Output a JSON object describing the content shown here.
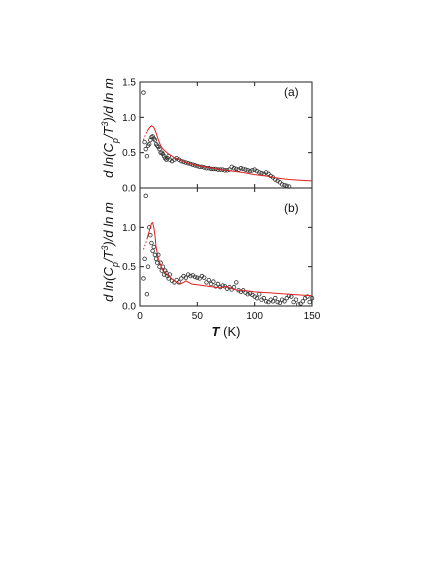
{
  "chart_data": [
    {
      "type": "scatter",
      "panel_label": "(a)",
      "ylabel": "d ln(C_p/T^3)/d ln m",
      "xlabel": "T (K)",
      "xlim": [
        0,
        150
      ],
      "ylim": [
        0,
        1.5
      ],
      "xticks": [
        0,
        50,
        100,
        150
      ],
      "yticks": [
        0.0,
        0.5,
        1.0,
        1.5
      ],
      "series": [
        {
          "style": "scatter",
          "color": "#333333",
          "x": [
            3,
            4,
            5,
            6,
            7,
            8,
            9,
            10,
            11,
            12,
            13,
            14,
            15,
            16,
            17,
            18,
            19,
            20,
            21,
            22,
            23,
            24,
            25,
            26,
            28,
            30,
            32,
            34,
            36,
            38,
            40,
            42,
            44,
            46,
            48,
            50,
            52,
            54,
            56,
            58,
            60,
            62,
            64,
            66,
            68,
            70,
            72,
            74,
            76,
            78,
            80,
            82,
            84,
            86,
            88,
            90,
            92,
            94,
            96,
            98,
            100,
            102,
            104,
            106,
            108,
            110,
            112,
            114,
            116,
            118,
            120,
            122,
            124,
            126,
            128,
            130
          ],
          "y": [
            1.35,
            0.65,
            0.55,
            0.45,
            0.6,
            0.62,
            0.68,
            0.72,
            0.73,
            0.7,
            0.68,
            0.62,
            0.6,
            0.58,
            0.55,
            0.5,
            0.5,
            0.48,
            0.45,
            0.42,
            0.4,
            0.42,
            0.45,
            0.4,
            0.38,
            0.4,
            0.42,
            0.4,
            0.38,
            0.37,
            0.36,
            0.35,
            0.34,
            0.33,
            0.32,
            0.31,
            0.3,
            0.3,
            0.29,
            0.28,
            0.28,
            0.27,
            0.27,
            0.27,
            0.26,
            0.26,
            0.26,
            0.25,
            0.25,
            0.26,
            0.3,
            0.28,
            0.27,
            0.26,
            0.28,
            0.27,
            0.26,
            0.25,
            0.24,
            0.25,
            0.26,
            0.24,
            0.22,
            0.21,
            0.2,
            0.22,
            0.2,
            0.17,
            0.15,
            0.12,
            0.1,
            0.08,
            0.05,
            0.04,
            0.03,
            0.02
          ]
        },
        {
          "style": "line",
          "color": "#e02020",
          "x": [
            6,
            8,
            10,
            12,
            14,
            16,
            18,
            20,
            25,
            30,
            40,
            50,
            60,
            70,
            80,
            90,
            100,
            110,
            120,
            130,
            140,
            150
          ],
          "y": [
            0.8,
            0.85,
            0.88,
            0.86,
            0.78,
            0.68,
            0.6,
            0.55,
            0.48,
            0.43,
            0.36,
            0.32,
            0.29,
            0.26,
            0.24,
            0.22,
            0.19,
            0.17,
            0.14,
            0.12,
            0.11,
            0.1
          ]
        },
        {
          "style": "dotted",
          "color": "#e02020",
          "x": [
            3,
            4,
            5,
            6
          ],
          "y": [
            0.68,
            0.72,
            0.76,
            0.8
          ]
        }
      ]
    },
    {
      "type": "scatter",
      "panel_label": "(b)",
      "ylabel": "d ln(C_p/T^3)/d ln m",
      "xlabel": "T (K)",
      "xlim": [
        0,
        150
      ],
      "ylim": [
        0,
        1.5
      ],
      "xticks": [
        0,
        50,
        100,
        150
      ],
      "yticks": [
        0.0,
        0.5,
        1.0
      ],
      "series": [
        {
          "style": "scatter",
          "color": "#333333",
          "x": [
            3,
            4,
            5,
            6,
            7,
            8,
            9,
            10,
            11,
            12,
            13,
            14,
            15,
            16,
            17,
            18,
            19,
            20,
            21,
            22,
            23,
            24,
            25,
            26,
            28,
            30,
            32,
            34,
            36,
            38,
            40,
            42,
            44,
            46,
            48,
            50,
            52,
            54,
            56,
            58,
            60,
            62,
            64,
            66,
            68,
            70,
            72,
            74,
            76,
            78,
            80,
            82,
            84,
            86,
            88,
            90,
            92,
            94,
            96,
            98,
            100,
            102,
            104,
            106,
            108,
            110,
            112,
            114,
            116,
            118,
            120,
            122,
            124,
            126,
            128,
            130,
            132,
            134,
            136,
            138,
            140,
            142,
            144,
            146,
            148,
            150
          ],
          "y": [
            0.35,
            0.6,
            1.4,
            0.15,
            0.5,
            1.0,
            0.9,
            0.8,
            0.7,
            0.75,
            0.65,
            0.6,
            0.55,
            0.65,
            0.5,
            0.55,
            0.45,
            0.5,
            0.4,
            0.45,
            0.42,
            0.38,
            0.35,
            0.4,
            0.32,
            0.3,
            0.33,
            0.3,
            0.35,
            0.38,
            0.36,
            0.4,
            0.38,
            0.39,
            0.37,
            0.36,
            0.35,
            0.38,
            0.36,
            0.3,
            0.33,
            0.28,
            0.31,
            0.25,
            0.28,
            0.24,
            0.26,
            0.25,
            0.22,
            0.24,
            0.21,
            0.24,
            0.3,
            0.2,
            0.18,
            0.2,
            0.17,
            0.15,
            0.16,
            0.14,
            0.12,
            0.1,
            0.15,
            0.08,
            0.1,
            0.06,
            0.05,
            0.08,
            0.06,
            0.1,
            0.05,
            0.04,
            0.08,
            0.06,
            0.1,
            0.13,
            0.12,
            0.05,
            0.08,
            0.02,
            0.03,
            0.06,
            0.1,
            0.12,
            0.05,
            0.1
          ]
        },
        {
          "style": "line",
          "color": "#e02020",
          "x": [
            6,
            8,
            10,
            11,
            12,
            13,
            14,
            16,
            18,
            20,
            25,
            30,
            35,
            38,
            40,
            45,
            50,
            60,
            70,
            75,
            80,
            85,
            90,
            100,
            110,
            120,
            130,
            140,
            150
          ],
          "y": [
            0.85,
            0.95,
            1.05,
            1.06,
            1.0,
            0.9,
            0.75,
            0.6,
            0.52,
            0.45,
            0.38,
            0.32,
            0.28,
            0.3,
            0.32,
            0.28,
            0.27,
            0.25,
            0.23,
            0.25,
            0.22,
            0.2,
            0.2,
            0.18,
            0.17,
            0.16,
            0.15,
            0.14,
            0.13
          ]
        },
        {
          "style": "dotted",
          "color": "#e02020",
          "x": [
            3,
            4,
            5,
            6
          ],
          "y": [
            0.72,
            0.76,
            0.8,
            0.85
          ]
        }
      ]
    }
  ],
  "figure": {
    "ylabel_a": "d ln(C",
    "ylabel_a_sub": "p",
    "ylabel_a_mid": "/T",
    "ylabel_a_sup": "3",
    "ylabel_a_end": ")/d ln m",
    "xlabel_italic": "T",
    "xlabel_unit": " (K)"
  }
}
